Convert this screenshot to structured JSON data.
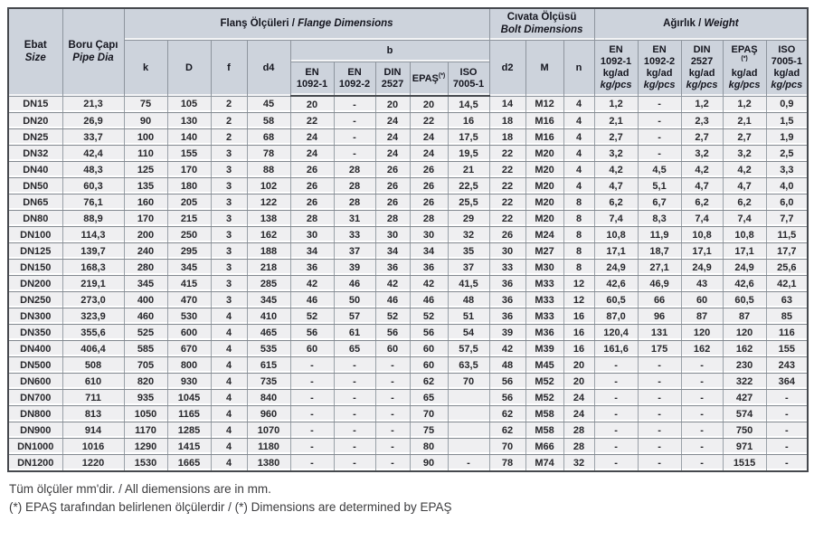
{
  "colors": {
    "header_bg": "#cdd3dc",
    "row_bg": "#efeff1",
    "outer_border": "#46494e",
    "grid": "#9aa1a8",
    "text": "#27272b"
  },
  "header": {
    "ebat_tr": "Ebat",
    "ebat_en": "Size",
    "boru_tr": "Boru Çapı",
    "boru_en": "Pipe Dia",
    "flans_tr": "Flanş Ölçüleri",
    "flans_en": "Flange Dimensions",
    "civata_tr": "Cıvata Ölçüsü",
    "civata_en": "Bolt Dimensions",
    "agirlik_tr": "Ağırlık",
    "agirlik_en": "Weight",
    "sep": " / ",
    "col_k": "k",
    "col_D": "D",
    "col_f": "f",
    "col_d4": "d4",
    "col_b": "b",
    "col_d2": "d2",
    "col_M": "M",
    "col_n": "n",
    "en1092_1_l1": "EN",
    "en1092_1_l2": "1092-1",
    "en1092_2_l1": "EN",
    "en1092_2_l2": "1092-2",
    "din_l1": "DIN",
    "din_l2": "2527",
    "epas": "EPAŞ",
    "epas_sup": "(*)",
    "iso_l1": "ISO",
    "iso_l2": "7005-1",
    "kg_ad": "kg/ad",
    "kg_pcs": "kg/pcs"
  },
  "table": {
    "columns": [
      {
        "key": "size"
      },
      {
        "key": "pipe-dia"
      },
      {
        "key": "k"
      },
      {
        "key": "D"
      },
      {
        "key": "f"
      },
      {
        "key": "d4"
      },
      {
        "key": "b-en1092-1"
      },
      {
        "key": "b-en1092-2"
      },
      {
        "key": "b-din2527"
      },
      {
        "key": "b-epas"
      },
      {
        "key": "b-iso7005-1"
      },
      {
        "key": "d2"
      },
      {
        "key": "M"
      },
      {
        "key": "n"
      },
      {
        "key": "w-en1092-1"
      },
      {
        "key": "w-en1092-2"
      },
      {
        "key": "w-din2527"
      },
      {
        "key": "w-epas"
      },
      {
        "key": "w-iso7005-1"
      }
    ],
    "rows": [
      [
        "DN15",
        "21,3",
        "75",
        "105",
        "2",
        "45",
        "20",
        "-",
        "20",
        "20",
        "14,5",
        "14",
        "M12",
        "4",
        "1,2",
        "-",
        "1,2",
        "1,2",
        "0,9"
      ],
      [
        "DN20",
        "26,9",
        "90",
        "130",
        "2",
        "58",
        "22",
        "-",
        "24",
        "22",
        "16",
        "18",
        "M16",
        "4",
        "2,1",
        "-",
        "2,3",
        "2,1",
        "1,5"
      ],
      [
        "DN25",
        "33,7",
        "100",
        "140",
        "2",
        "68",
        "24",
        "-",
        "24",
        "24",
        "17,5",
        "18",
        "M16",
        "4",
        "2,7",
        "-",
        "2,7",
        "2,7",
        "1,9"
      ],
      [
        "DN32",
        "42,4",
        "110",
        "155",
        "3",
        "78",
        "24",
        "-",
        "24",
        "24",
        "19,5",
        "22",
        "M20",
        "4",
        "3,2",
        "-",
        "3,2",
        "3,2",
        "2,5"
      ],
      [
        "DN40",
        "48,3",
        "125",
        "170",
        "3",
        "88",
        "26",
        "28",
        "26",
        "26",
        "21",
        "22",
        "M20",
        "4",
        "4,2",
        "4,5",
        "4,2",
        "4,2",
        "3,3"
      ],
      [
        "DN50",
        "60,3",
        "135",
        "180",
        "3",
        "102",
        "26",
        "28",
        "26",
        "26",
        "22,5",
        "22",
        "M20",
        "4",
        "4,7",
        "5,1",
        "4,7",
        "4,7",
        "4,0"
      ],
      [
        "DN65",
        "76,1",
        "160",
        "205",
        "3",
        "122",
        "26",
        "28",
        "26",
        "26",
        "25,5",
        "22",
        "M20",
        "8",
        "6,2",
        "6,7",
        "6,2",
        "6,2",
        "6,0"
      ],
      [
        "DN80",
        "88,9",
        "170",
        "215",
        "3",
        "138",
        "28",
        "31",
        "28",
        "28",
        "29",
        "22",
        "M20",
        "8",
        "7,4",
        "8,3",
        "7,4",
        "7,4",
        "7,7"
      ],
      [
        "DN100",
        "114,3",
        "200",
        "250",
        "3",
        "162",
        "30",
        "33",
        "30",
        "30",
        "32",
        "26",
        "M24",
        "8",
        "10,8",
        "11,9",
        "10,8",
        "10,8",
        "11,5"
      ],
      [
        "DN125",
        "139,7",
        "240",
        "295",
        "3",
        "188",
        "34",
        "37",
        "34",
        "34",
        "35",
        "30",
        "M27",
        "8",
        "17,1",
        "18,7",
        "17,1",
        "17,1",
        "17,7"
      ],
      [
        "DN150",
        "168,3",
        "280",
        "345",
        "3",
        "218",
        "36",
        "39",
        "36",
        "36",
        "37",
        "33",
        "M30",
        "8",
        "24,9",
        "27,1",
        "24,9",
        "24,9",
        "25,6"
      ],
      [
        "DN200",
        "219,1",
        "345",
        "415",
        "3",
        "285",
        "42",
        "46",
        "42",
        "42",
        "41,5",
        "36",
        "M33",
        "12",
        "42,6",
        "46,9",
        "43",
        "42,6",
        "42,1"
      ],
      [
        "DN250",
        "273,0",
        "400",
        "470",
        "3",
        "345",
        "46",
        "50",
        "46",
        "46",
        "48",
        "36",
        "M33",
        "12",
        "60,5",
        "66",
        "60",
        "60,5",
        "63"
      ],
      [
        "DN300",
        "323,9",
        "460",
        "530",
        "4",
        "410",
        "52",
        "57",
        "52",
        "52",
        "51",
        "36",
        "M33",
        "16",
        "87,0",
        "96",
        "87",
        "87",
        "85"
      ],
      [
        "DN350",
        "355,6",
        "525",
        "600",
        "4",
        "465",
        "56",
        "61",
        "56",
        "56",
        "54",
        "39",
        "M36",
        "16",
        "120,4",
        "131",
        "120",
        "120",
        "116"
      ],
      [
        "DN400",
        "406,4",
        "585",
        "670",
        "4",
        "535",
        "60",
        "65",
        "60",
        "60",
        "57,5",
        "42",
        "M39",
        "16",
        "161,6",
        "175",
        "162",
        "162",
        "155"
      ],
      [
        "DN500",
        "508",
        "705",
        "800",
        "4",
        "615",
        "-",
        "-",
        "-",
        "60",
        "63,5",
        "48",
        "M45",
        "20",
        "-",
        "-",
        "-",
        "230",
        "243"
      ],
      [
        "DN600",
        "610",
        "820",
        "930",
        "4",
        "735",
        "-",
        "-",
        "-",
        "62",
        "70",
        "56",
        "M52",
        "20",
        "-",
        "-",
        "-",
        "322",
        "364"
      ],
      [
        "DN700",
        "711",
        "935",
        "1045",
        "4",
        "840",
        "-",
        "-",
        "-",
        "65",
        "",
        "56",
        "M52",
        "24",
        "-",
        "-",
        "-",
        "427",
        "-"
      ],
      [
        "DN800",
        "813",
        "1050",
        "1165",
        "4",
        "960",
        "-",
        "-",
        "-",
        "70",
        "",
        "62",
        "M58",
        "24",
        "-",
        "-",
        "-",
        "574",
        "-"
      ],
      [
        "DN900",
        "914",
        "1170",
        "1285",
        "4",
        "1070",
        "-",
        "-",
        "-",
        "75",
        "",
        "62",
        "M58",
        "28",
        "-",
        "-",
        "-",
        "750",
        "-"
      ],
      [
        "DN1000",
        "1016",
        "1290",
        "1415",
        "4",
        "1180",
        "-",
        "-",
        "-",
        "80",
        "",
        "70",
        "M66",
        "28",
        "-",
        "-",
        "-",
        "971",
        "-"
      ],
      [
        "DN1200",
        "1220",
        "1530",
        "1665",
        "4",
        "1380",
        "-",
        "-",
        "-",
        "90",
        "-",
        "78",
        "M74",
        "32",
        "-",
        "-",
        "-",
        "1515",
        "-"
      ]
    ]
  },
  "footer": {
    "line1": "Tüm ölçüler mm'dir. / All diemensions are in mm.",
    "line2": "(*) EPAŞ tarafından belirlenen ölçülerdir / (*) Dimensions are determined by EPAŞ"
  }
}
